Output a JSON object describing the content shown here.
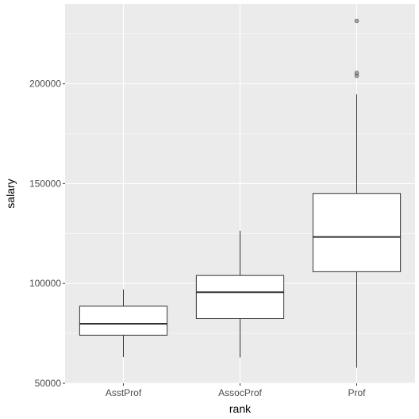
{
  "chart_data": {
    "type": "boxplot",
    "xlabel": "rank",
    "ylabel": "salary",
    "categories": [
      "AsstProf",
      "AssocProf",
      "Prof"
    ],
    "ylim": [
      50000,
      240000
    ],
    "y_ticks": [
      50000,
      100000,
      150000,
      200000
    ],
    "y_tick_labels": [
      "50000",
      "100000",
      "150000",
      "200000"
    ],
    "grid": true,
    "legend": "none",
    "boxes": [
      {
        "category": "AsstProf",
        "whisker_low": 63100,
        "q1": 74100,
        "median": 79800,
        "q3": 88600,
        "whisker_high": 97000,
        "outliers": []
      },
      {
        "category": "AssocProf",
        "whisker_low": 62900,
        "q1": 82400,
        "median": 95600,
        "q3": 104000,
        "whisker_high": 126400,
        "outliers": []
      },
      {
        "category": "Prof",
        "whisker_low": 57800,
        "q1": 105900,
        "median": 123300,
        "q3": 145100,
        "whisker_high": 194800,
        "outliers": [
          204000,
          205500,
          231500
        ]
      }
    ],
    "colors": {
      "panel_background": "#ebebeb",
      "grid_major": "#ffffff",
      "box_fill": "#ffffff",
      "box_line": "#333333",
      "outlier": "#333333"
    }
  }
}
